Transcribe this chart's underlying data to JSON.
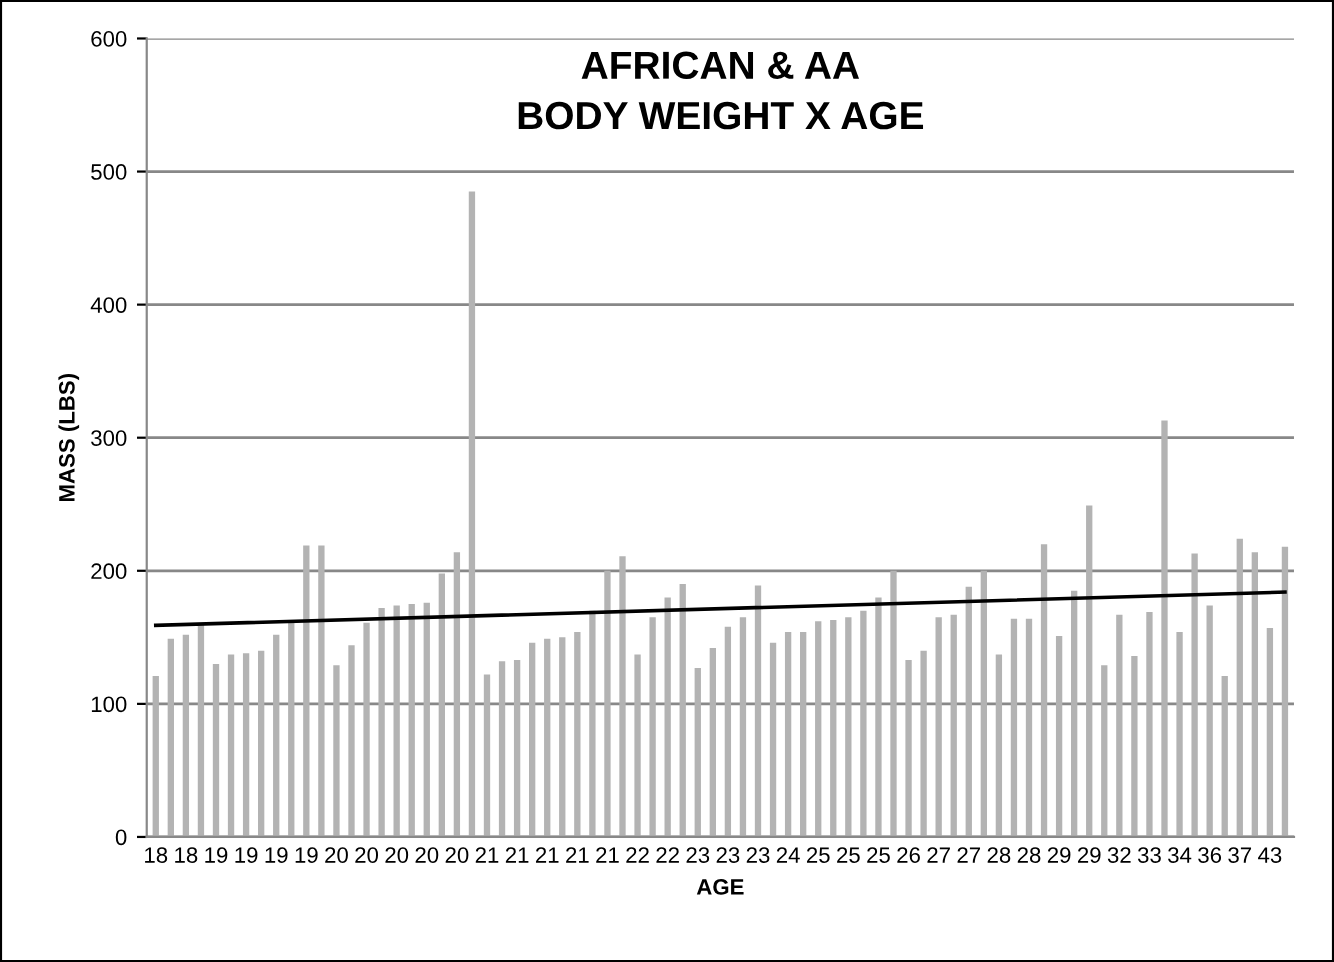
{
  "chart_data": {
    "type": "bar",
    "title": "AFRICAN & AA\nBODY WEIGHT X AGE",
    "xlabel": "AGE",
    "ylabel": "MASS (LBS)",
    "categories": [
      "18",
      null,
      "18",
      null,
      "19",
      null,
      "19",
      null,
      "19",
      null,
      "19",
      null,
      "20",
      null,
      "20",
      null,
      "20",
      null,
      "20",
      null,
      "20",
      null,
      "21",
      null,
      "21",
      null,
      "21",
      null,
      "21",
      null,
      "21",
      null,
      "22",
      null,
      "22",
      null,
      "23",
      null,
      "23",
      null,
      "23",
      null,
      "24",
      null,
      "25",
      null,
      "25",
      null,
      "25",
      null,
      "26",
      null,
      "27",
      null,
      "27",
      null,
      "28",
      null,
      "28",
      null,
      "29",
      null,
      "29",
      null,
      "32",
      null,
      "33",
      null,
      "34",
      null,
      "36",
      null,
      "37",
      null,
      "43",
      null
    ],
    "series": [
      {
        "color": "#b3b3b3",
        "values": [
          121,
          149,
          152,
          160,
          130,
          137,
          138,
          140,
          152,
          162,
          219,
          219,
          129,
          144,
          161,
          172,
          174,
          175,
          176,
          198,
          214,
          485,
          122,
          132,
          133,
          146,
          149,
          150,
          154,
          170,
          200,
          211,
          137,
          165,
          180,
          190,
          127,
          142,
          158,
          165,
          189,
          146,
          154,
          154,
          162,
          163,
          165,
          170,
          180,
          200,
          133,
          140,
          165,
          167,
          188,
          200,
          137,
          164,
          164,
          220,
          151,
          185,
          249,
          129,
          167,
          136,
          169,
          313,
          154,
          213,
          174,
          121,
          224,
          214,
          157,
          218
        ]
      },
      {
        "type": "line",
        "color": "#000000",
        "values": [
          159,
          null,
          null,
          null,
          null,
          null,
          null,
          null,
          null,
          null,
          null,
          null,
          null,
          null,
          null,
          null,
          null,
          null,
          null,
          null,
          null,
          null,
          null,
          null,
          null,
          null,
          null,
          null,
          null,
          null,
          null,
          null,
          null,
          null,
          null,
          null,
          null,
          null,
          null,
          null,
          null,
          null,
          null,
          null,
          null,
          null,
          null,
          null,
          null,
          null,
          null,
          null,
          null,
          null,
          null,
          null,
          null,
          null,
          null,
          null,
          null,
          null,
          null,
          null,
          null,
          null,
          null,
          null,
          null,
          null,
          null,
          null,
          null,
          null,
          null,
          184
        ]
      }
    ],
    "ylim": [
      0,
      600
    ],
    "yticks": [
      0,
      100,
      200,
      300,
      400,
      500,
      600
    ],
    "grid": "y"
  }
}
